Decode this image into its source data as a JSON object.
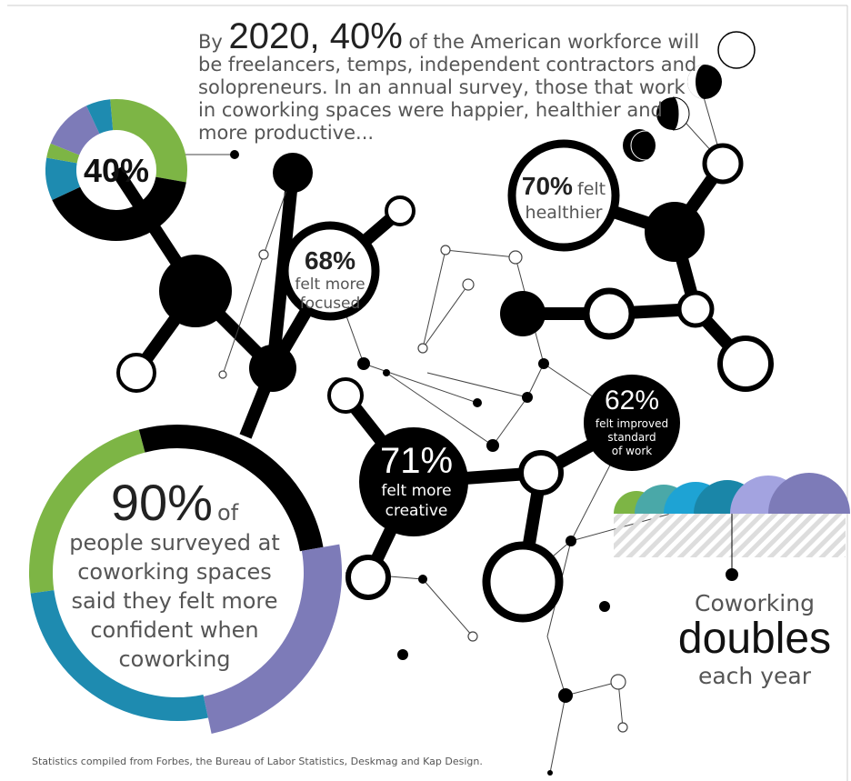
{
  "intro": {
    "prefix": "By",
    "highlight": "2020, 40%",
    "lines": [
      "of the American workforce will",
      "be freelancers, temps, independent contractors and",
      "solopreneurs.  In an annual survey, those that work",
      "in coworking spaces were happier, healthier and",
      "more productive..."
    ]
  },
  "donut_label": "40%",
  "stats": {
    "focused": {
      "figure": "68%",
      "lines": [
        "felt more",
        "focused"
      ]
    },
    "healthier": {
      "figure": "70%",
      "lines": [
        "felt",
        "healthier"
      ]
    },
    "standard": {
      "figure": "62%",
      "lines": [
        "felt improved",
        "standard",
        "of work"
      ]
    },
    "creative": {
      "figure": "71%",
      "lines": [
        "felt more",
        "creative"
      ]
    },
    "confident": {
      "figure": "90%",
      "suffix": "of",
      "lines": [
        "people surveyed at",
        "coworking spaces",
        "said they felt more",
        "confident when",
        "coworking"
      ]
    }
  },
  "growth": {
    "lines": [
      "Coworking",
      "doubles",
      "each year"
    ]
  },
  "footer": "Statistics compiled from Forbes, the Bureau of Labor Statistics, Deskmag and Kap Design."
}
